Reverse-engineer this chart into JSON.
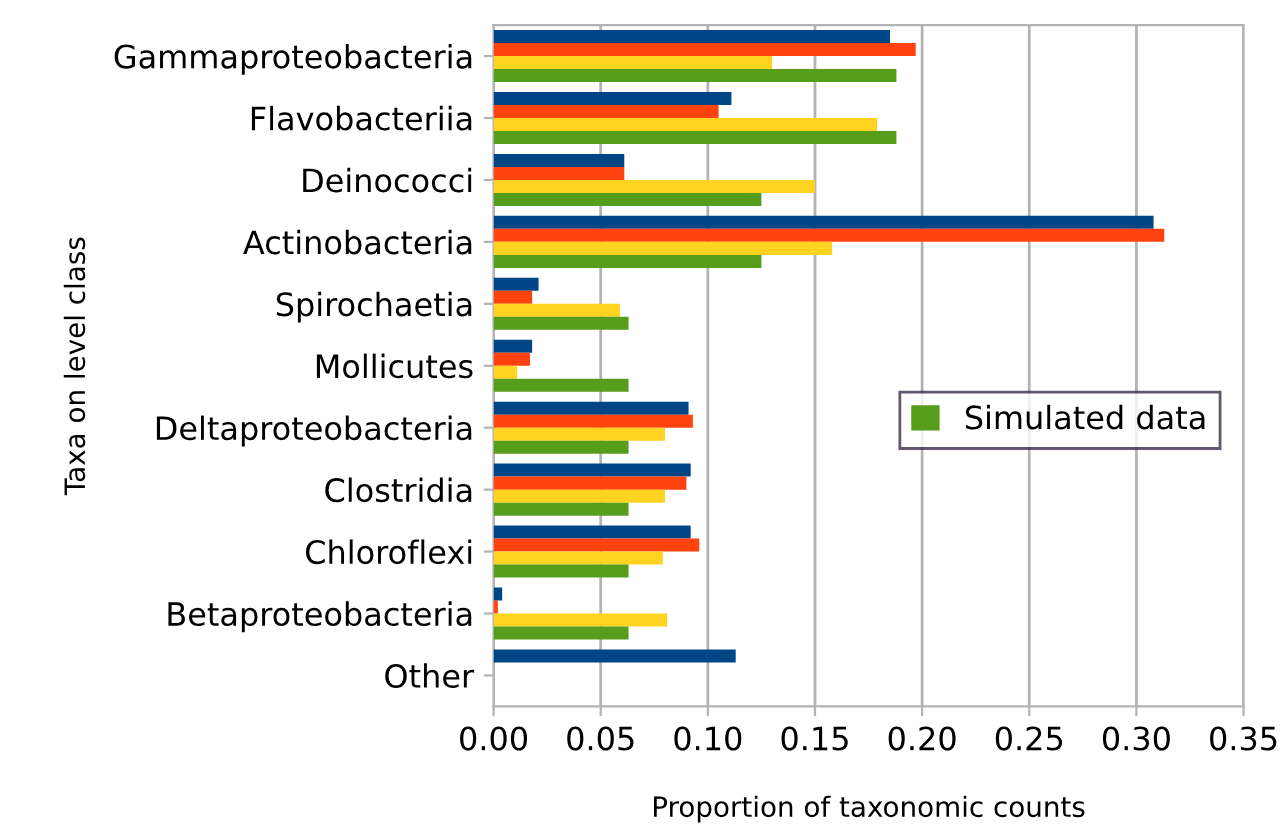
{
  "chart_data": {
    "type": "bar",
    "orientation": "horizontal",
    "xlabel": "Proportion of taxonomic counts",
    "ylabel": "Taxa on level class",
    "categories": [
      "Gammaproteobacteria",
      "Flavobacteriia",
      "Deinococci",
      "Actinobacteria",
      "Spirochaetia",
      "Mollicutes",
      "Deltaproteobacteria",
      "Clostridia",
      "Chloroflexi",
      "Betaproteobacteria",
      "Other"
    ],
    "series": [
      {
        "color": "#004586",
        "values": [
          0.185,
          0.111,
          0.061,
          0.308,
          0.021,
          0.018,
          0.091,
          0.092,
          0.092,
          0.004,
          0.113
        ]
      },
      {
        "color": "#ff420e",
        "values": [
          0.197,
          0.105,
          0.061,
          0.313,
          0.018,
          0.017,
          0.093,
          0.09,
          0.096,
          0.002,
          0
        ]
      },
      {
        "color": "#ffd320",
        "values": [
          0.13,
          0.179,
          0.15,
          0.158,
          0.059,
          0.011,
          0.08,
          0.08,
          0.079,
          0.081,
          0
        ]
      },
      {
        "name": "Simulated data",
        "color": "#579d1c",
        "values": [
          0.188,
          0.188,
          0.125,
          0.125,
          0.063,
          0.063,
          0.063,
          0.063,
          0.063,
          0.063,
          0
        ]
      }
    ],
    "xlim": [
      0,
      0.35
    ],
    "xticks": [
      {
        "value": 0,
        "label": "0.00"
      },
      {
        "value": 0.05,
        "label": "0.05"
      },
      {
        "value": 0.1,
        "label": "0.10"
      },
      {
        "value": 0.15,
        "label": "0.15"
      },
      {
        "value": 0.2,
        "label": "0.20"
      },
      {
        "value": 0.25,
        "label": "0.25"
      },
      {
        "value": 0.3,
        "label": "0.30"
      },
      {
        "value": 0.35,
        "label": "0.35"
      }
    ],
    "grid": "x",
    "legend": "right"
  }
}
